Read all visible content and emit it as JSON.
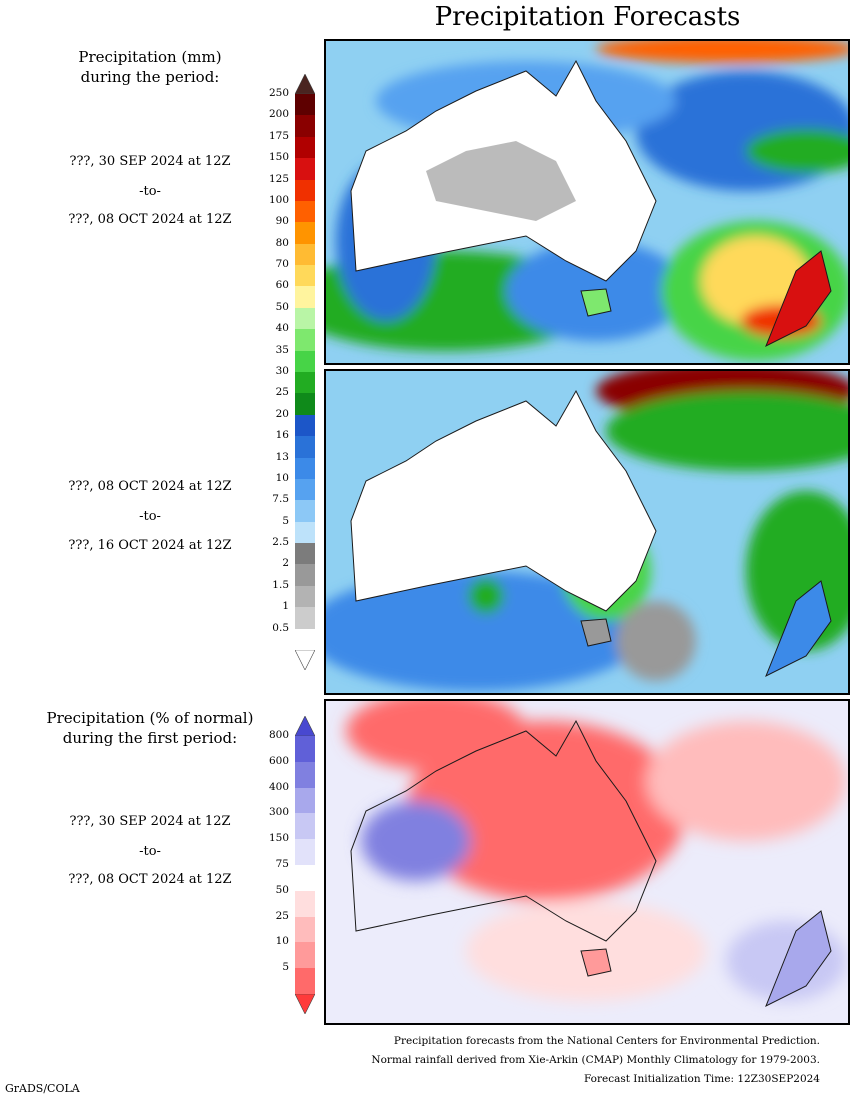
{
  "title": "Precipitation Forecasts",
  "panel1": {
    "heading": [
      "Precipitation (mm)",
      "during the period:"
    ],
    "start": "???, 30 SEP 2024 at 12Z",
    "to": "-to-",
    "end": "???, 08 OCT 2024 at 12Z"
  },
  "panel2": {
    "start": "???, 08 OCT 2024 at 12Z",
    "to": "-to-",
    "end": "???, 16 OCT 2024 at 12Z"
  },
  "panel3": {
    "heading": [
      "Precipitation (% of normal)",
      "during the first period:"
    ],
    "start": "???, 30 SEP 2024 at 12Z",
    "to": "-to-",
    "end": "???, 08 OCT 2024 at 12Z"
  },
  "mm_scale": {
    "labels": [
      "250",
      "200",
      "175",
      "150",
      "125",
      "100",
      "90",
      "80",
      "70",
      "60",
      "50",
      "40",
      "35",
      "30",
      "25",
      "20",
      "16",
      "13",
      "10",
      "7.5",
      "5",
      "2.5",
      "2",
      "1.5",
      "1",
      "0.5"
    ],
    "colors": [
      "#5e0000",
      "#8a0000",
      "#b00000",
      "#d81010",
      "#f03000",
      "#ff6000",
      "#ff9400",
      "#ffbb33",
      "#ffd95a",
      "#fff49e",
      "#b9f5a6",
      "#7ee86e",
      "#47d447",
      "#22ac22",
      "#0f8a1a",
      "#1c56c8",
      "#2a72d8",
      "#3c8ae8",
      "#56a2f0",
      "#8cc8f6",
      "#bde2fa",
      "#7c7c7c",
      "#999999",
      "#b3b3b3",
      "#cccccc",
      "#ffffff"
    ],
    "top_arrow_color": "#4a2420",
    "bottom_arrow_color": "#ffffff"
  },
  "pct_scale": {
    "labels": [
      "800",
      "600",
      "400",
      "300",
      "150",
      "75",
      "50",
      "25",
      "10",
      "5"
    ],
    "colors": [
      "#6060d8",
      "#8080e0",
      "#a8a8ec",
      "#c8c8f4",
      "#e2e2fa",
      "#ffffff",
      "#ffdede",
      "#ffbcbc",
      "#ff9a9a",
      "#ff6a6a"
    ],
    "top_arrow_color": "#4848d0",
    "bottom_arrow_color": "#ff3b3b"
  },
  "footer": [
    "Precipitation forecasts from the National Centers for Environmental Prediction.",
    "Normal rainfall derived from Xie-Arkin (CMAP) Monthly Climatology for 1979-2003.",
    "Forecast Initialization Time: 12Z30SEP2024"
  ],
  "credit": "GrADS/COLA"
}
